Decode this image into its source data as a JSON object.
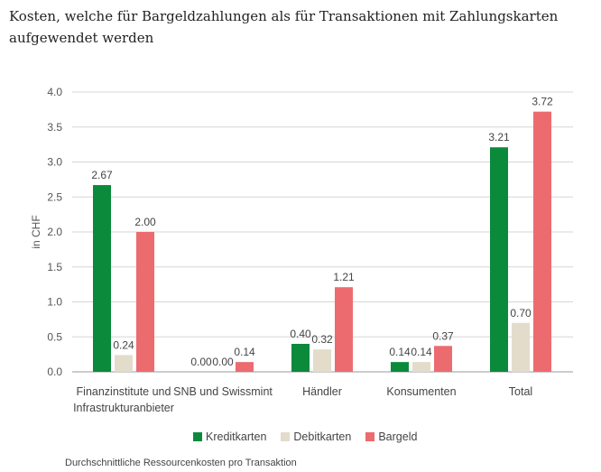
{
  "title": "Kosten, welche für Bargeldzahlungen als für Transaktionen mit Zahlungskarten aufgewendet werden",
  "source_note": "Durchschnittliche Ressourcenkosten pro Transaktion",
  "chart_data": {
    "type": "bar",
    "ylabel": "in CHF",
    "ylim": [
      0,
      4.0
    ],
    "yticks": [
      "0.0",
      "0.5",
      "1.0",
      "1.5",
      "2.0",
      "2.5",
      "3.0",
      "3.5",
      "4.0"
    ],
    "categories": [
      [
        "Finanzinstitute und",
        "Infrastrukturanbieter"
      ],
      [
        "SNB und Swissmint"
      ],
      [
        "Händler"
      ],
      [
        "Konsumenten"
      ],
      [
        "Total"
      ]
    ],
    "series": [
      {
        "name": "Kreditkarten",
        "color": "#0b8a3c",
        "values": [
          2.67,
          0.0,
          0.4,
          0.14,
          3.21
        ],
        "labels": [
          "2.67",
          "0.00",
          "0.40",
          "0.14",
          "3.21"
        ]
      },
      {
        "name": "Debitkarten",
        "color": "#e3dccb",
        "values": [
          0.24,
          0.0,
          0.32,
          0.14,
          0.7
        ],
        "labels": [
          "0.24",
          "0.00",
          "0.32",
          "0.14",
          "0.70"
        ]
      },
      {
        "name": "Bargeld",
        "color": "#ec6b6f",
        "values": [
          2.0,
          0.14,
          1.21,
          0.37,
          3.72
        ],
        "labels": [
          "2.00",
          "0.14",
          "1.21",
          "0.37",
          "3.72"
        ]
      }
    ]
  }
}
